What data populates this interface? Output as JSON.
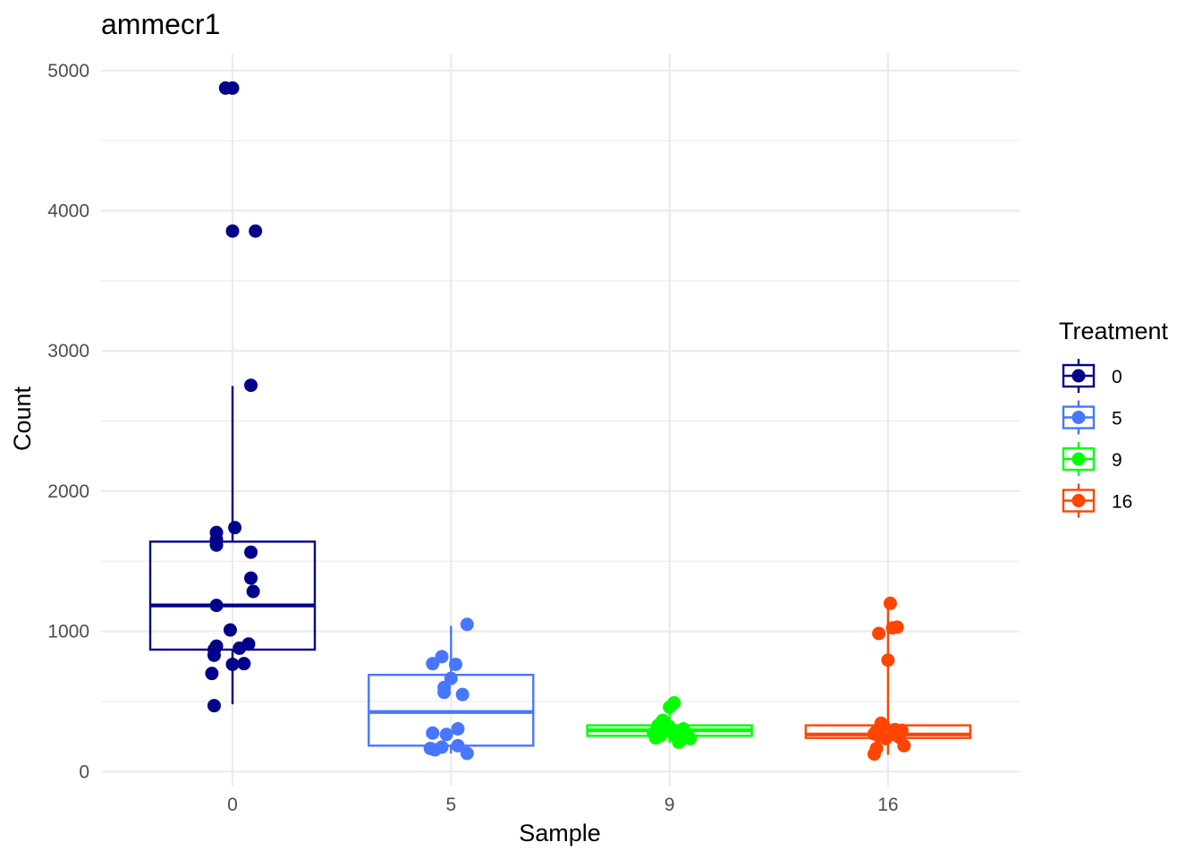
{
  "chart_data": {
    "type": "box",
    "title": "ammecr1",
    "xlabel": "Sample",
    "ylabel": "Count",
    "ylim": [
      -100,
      5120
    ],
    "yticks": [
      0,
      1000,
      2000,
      3000,
      4000,
      5000
    ],
    "grid": true,
    "legend": {
      "title": "Treatment",
      "position": "right",
      "entries": [
        "0",
        "5",
        "9",
        "16"
      ]
    },
    "categories": [
      "0",
      "5",
      "9",
      "16"
    ],
    "series": [
      {
        "name": "0",
        "color": "#00008B",
        "box": {
          "q1": 870,
          "median": 1185,
          "q3": 1640,
          "whisker_low": 480,
          "whisker_high": 2750
        },
        "points": [
          [
            -0.03,
            4875
          ],
          [
            0.0,
            4875
          ],
          [
            0.0,
            3855
          ],
          [
            0.1,
            3855
          ],
          [
            0.08,
            2755
          ],
          [
            0.01,
            1740
          ],
          [
            -0.07,
            1705
          ],
          [
            -0.07,
            1655
          ],
          [
            -0.07,
            1615
          ],
          [
            0.08,
            1565
          ],
          [
            0.08,
            1380
          ],
          [
            0.09,
            1285
          ],
          [
            -0.07,
            1185
          ],
          [
            -0.01,
            1010
          ],
          [
            -0.07,
            895
          ],
          [
            0.07,
            910
          ],
          [
            0.03,
            880
          ],
          [
            -0.08,
            870
          ],
          [
            -0.08,
            830
          ],
          [
            0.0,
            765
          ],
          [
            0.05,
            770
          ],
          [
            -0.09,
            700
          ],
          [
            -0.08,
            470
          ]
        ]
      },
      {
        "name": "5",
        "color": "#4876FF",
        "box": {
          "q1": 185,
          "median": 425,
          "q3": 690,
          "whisker_low": 130,
          "whisker_high": 1040
        },
        "points": [
          [
            0.07,
            1050
          ],
          [
            -0.04,
            820
          ],
          [
            -0.08,
            770
          ],
          [
            0.02,
            765
          ],
          [
            0.0,
            665
          ],
          [
            -0.03,
            600
          ],
          [
            -0.03,
            565
          ],
          [
            0.05,
            550
          ],
          [
            0.03,
            305
          ],
          [
            -0.08,
            275
          ],
          [
            -0.02,
            265
          ],
          [
            0.03,
            185
          ],
          [
            -0.04,
            175
          ],
          [
            -0.09,
            165
          ],
          [
            -0.07,
            155
          ],
          [
            0.07,
            130
          ]
        ]
      },
      {
        "name": "9",
        "color": "#00FF00",
        "box": {
          "q1": 255,
          "median": 295,
          "q3": 330,
          "whisker_low": 205,
          "whisker_high": 490
        },
        "points": [
          [
            0.02,
            490
          ],
          [
            0.0,
            460
          ],
          [
            -0.03,
            365
          ],
          [
            -0.05,
            330
          ],
          [
            0.0,
            320
          ],
          [
            0.06,
            305
          ],
          [
            -0.02,
            295
          ],
          [
            0.04,
            285
          ],
          [
            -0.07,
            275
          ],
          [
            0.08,
            265
          ],
          [
            -0.04,
            255
          ],
          [
            0.03,
            245
          ],
          [
            -0.06,
            240
          ],
          [
            0.09,
            235
          ],
          [
            0.05,
            225
          ],
          [
            0.04,
            210
          ]
        ]
      },
      {
        "name": "16",
        "color": "#FF4500",
        "box": {
          "q1": 240,
          "median": 265,
          "q3": 330,
          "whisker_low": 120,
          "whisker_high": 1200
        },
        "points": [
          [
            0.01,
            1200
          ],
          [
            0.02,
            1025
          ],
          [
            0.04,
            1030
          ],
          [
            -0.04,
            985
          ],
          [
            0.0,
            795
          ],
          [
            -0.03,
            345
          ],
          [
            -0.02,
            330
          ],
          [
            0.03,
            300
          ],
          [
            -0.05,
            290
          ],
          [
            0.06,
            295
          ],
          [
            -0.06,
            270
          ],
          [
            0.02,
            265
          ],
          [
            -0.04,
            255
          ],
          [
            0.05,
            245
          ],
          [
            -0.01,
            235
          ],
          [
            0.07,
            185
          ],
          [
            -0.05,
            165
          ],
          [
            -0.06,
            125
          ]
        ]
      }
    ]
  }
}
